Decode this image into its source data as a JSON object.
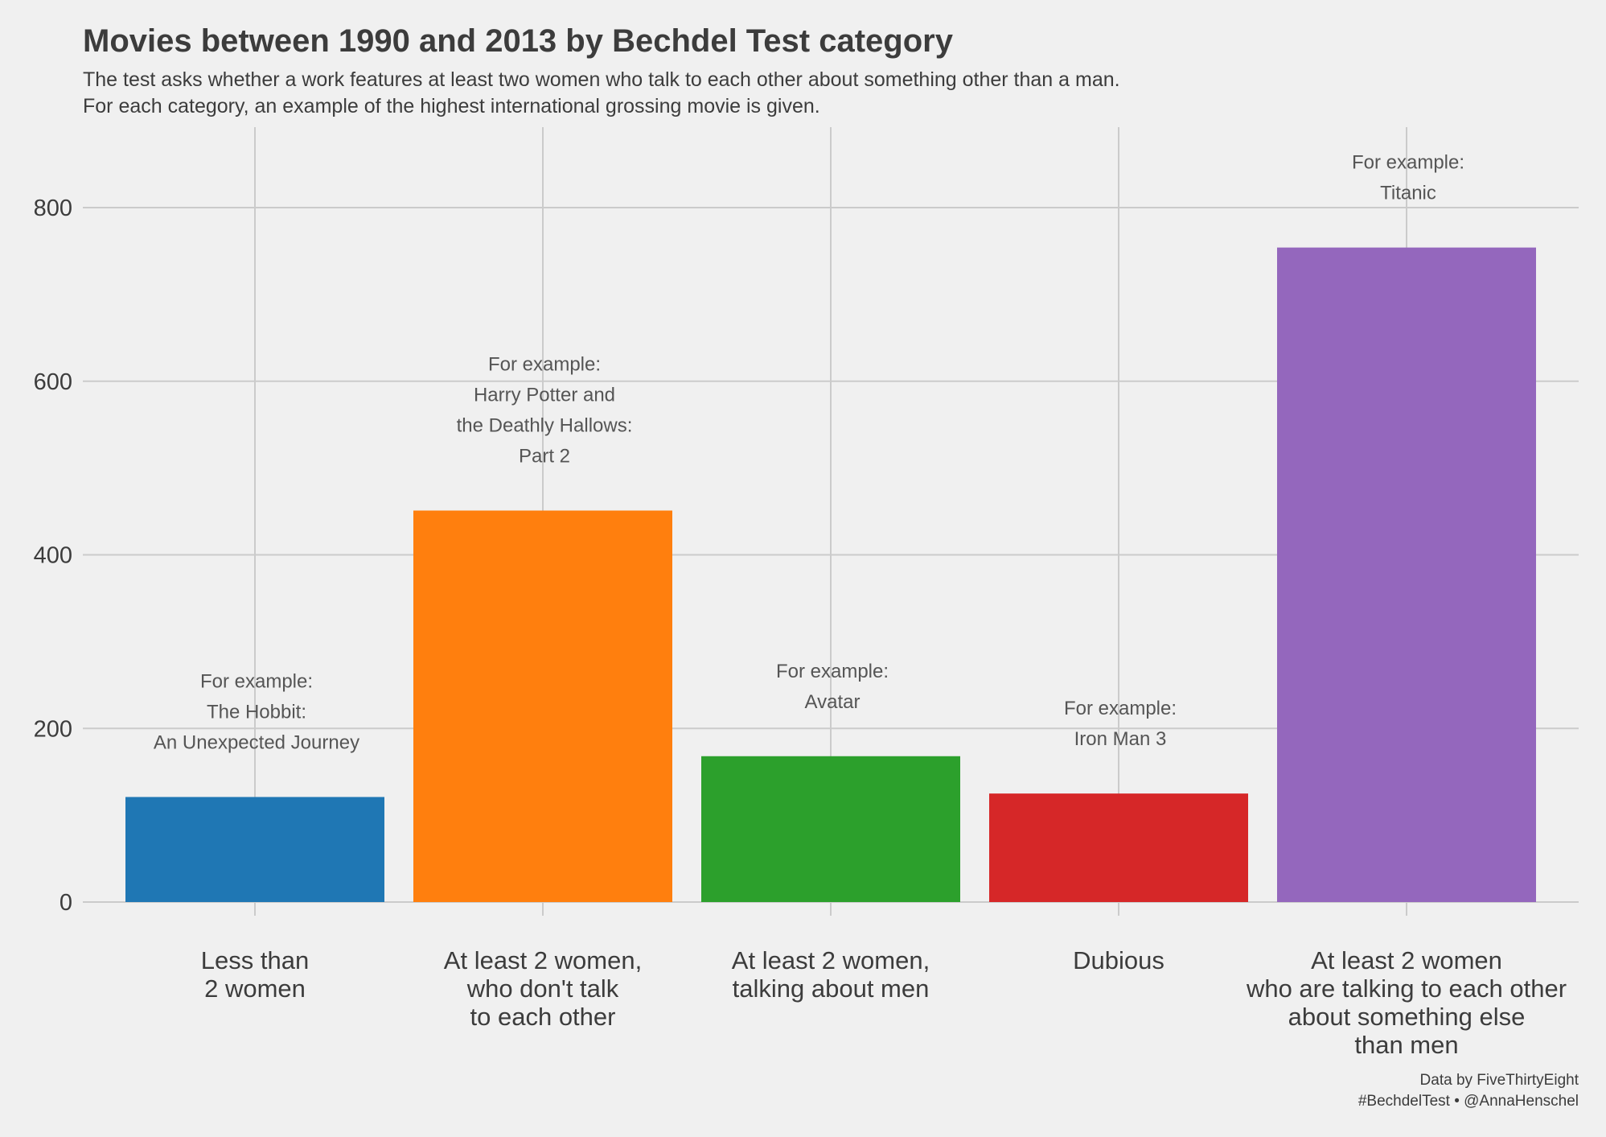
{
  "chart_data": {
    "type": "bar",
    "title": "Movies between 1990 and 2013 by Bechdel Test category",
    "subtitle_lines": [
      "The test asks whether a work features at least two women who talk to each other about something other than a man.",
      "For each category, an example of the highest international grossing movie is given."
    ],
    "categories": [
      [
        "Less than",
        "2 women"
      ],
      [
        "At least 2 women,",
        "who don't talk",
        "to each other"
      ],
      [
        "At least 2 women,",
        "talking about men"
      ],
      [
        "Dubious"
      ],
      [
        "At least 2 women",
        "who are talking to each other",
        "about something else",
        "than men"
      ]
    ],
    "values": [
      121,
      451,
      168,
      125,
      754
    ],
    "colors": [
      "#1f77b4",
      "#ff7f0e",
      "#2ca02c",
      "#d62728",
      "#9467bd"
    ],
    "annotations": [
      [
        "For example:",
        "The Hobbit:",
        "An Unexpected Journey"
      ],
      [
        "For example:",
        "Harry Potter and",
        "the Deathly Hallows:",
        "Part 2"
      ],
      [
        "For example:",
        "Avatar"
      ],
      [
        "For example:",
        "Iron Man 3"
      ],
      [
        "For example:",
        "Titanic"
      ]
    ],
    "yticks": [
      0,
      200,
      400,
      600,
      800
    ],
    "ylim": [
      0,
      890
    ],
    "xlabel": "",
    "ylabel": "",
    "grid": true,
    "credits": [
      "Data by FiveThirtyEight",
      "#BechdelTest • @AnnaHenschel"
    ]
  }
}
